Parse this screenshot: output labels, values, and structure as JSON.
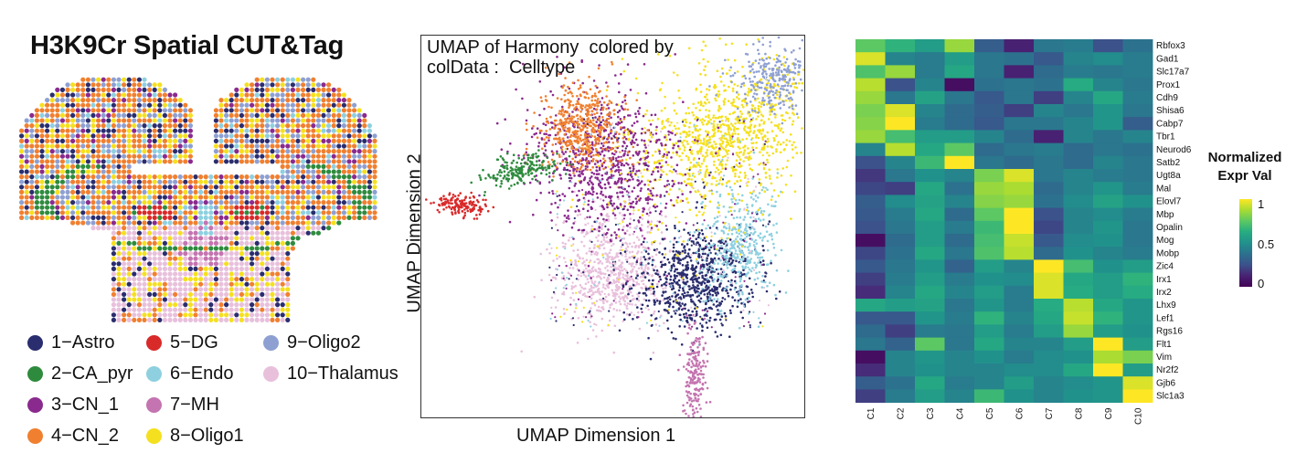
{
  "panel_a": {
    "title": "H3K9Cr Spatial CUT&Tag",
    "legend": [
      {
        "label": "1−Astro",
        "color": "#2a2d6e"
      },
      {
        "label": "2−CA_pyr",
        "color": "#2e8b3e"
      },
      {
        "label": "3−CN_1",
        "color": "#8a2a8e"
      },
      {
        "label": "4−CN_2",
        "color": "#f08030"
      },
      {
        "label": "5−DG",
        "color": "#d92a2a"
      },
      {
        "label": "6−Endo",
        "color": "#8ed0e0"
      },
      {
        "label": "7−MH",
        "color": "#c474b0"
      },
      {
        "label": "8−Oligo1",
        "color": "#f5e020"
      },
      {
        "label": "9−Oligo2",
        "color": "#8ea0d2"
      },
      {
        "label": "10−Thalamus",
        "color": "#e8c0dc"
      }
    ]
  },
  "chart_data": [
    {
      "type": "scatter",
      "title": "UMAP of Harmony  colored by\ncolData :  Celltype",
      "xlabel": "UMAP Dimension 1",
      "ylabel": "UMAP Dimension 2",
      "cluster_labels": [
        "4",
        "9",
        "8",
        "3",
        "2",
        "5",
        "6",
        "1",
        "10",
        "7"
      ],
      "grid": false
    },
    {
      "type": "heatmap",
      "columns": [
        "C1",
        "C2",
        "C3",
        "C4",
        "C5",
        "C6",
        "C7",
        "C8",
        "C9",
        "C10"
      ],
      "rows": [
        "Rbfox3",
        "Gad1",
        "Slc17a7",
        "Prox1",
        "Cdh9",
        "Shisa6",
        "Cabp7",
        "Tbr1",
        "Neurod6",
        "Satb2",
        "Ugt8a",
        "Mal",
        "Elovl7",
        "Mbp",
        "Opalin",
        "Mog",
        "Mobp",
        "Zic4",
        "Irx1",
        "Irx2",
        "Lhx9",
        "Lef1",
        "Rgs16",
        "Flt1",
        "Vim",
        "Nr2f2",
        "Gjb6",
        "Slc1a3"
      ],
      "values": [
        [
          0.75,
          0.65,
          0.55,
          0.85,
          0.3,
          0.12,
          0.4,
          0.42,
          0.25,
          0.38
        ],
        [
          0.95,
          0.45,
          0.42,
          0.55,
          0.4,
          0.38,
          0.28,
          0.45,
          0.48,
          0.42
        ],
        [
          0.72,
          0.85,
          0.42,
          0.6,
          0.4,
          0.12,
          0.35,
          0.42,
          0.4,
          0.42
        ],
        [
          0.9,
          0.25,
          0.45,
          0.05,
          0.38,
          0.4,
          0.38,
          0.62,
          0.45,
          0.4
        ],
        [
          0.85,
          0.4,
          0.58,
          0.4,
          0.28,
          0.4,
          0.2,
          0.45,
          0.6,
          0.42
        ],
        [
          0.8,
          0.95,
          0.45,
          0.35,
          0.3,
          0.2,
          0.45,
          0.4,
          0.52,
          0.4
        ],
        [
          0.82,
          1.0,
          0.42,
          0.35,
          0.28,
          0.4,
          0.4,
          0.45,
          0.52,
          0.3
        ],
        [
          0.85,
          0.7,
          0.55,
          0.55,
          0.45,
          0.35,
          0.12,
          0.45,
          0.4,
          0.45
        ],
        [
          0.45,
          0.9,
          0.6,
          0.75,
          0.35,
          0.4,
          0.42,
          0.35,
          0.4,
          0.38
        ],
        [
          0.25,
          0.45,
          0.68,
          1.0,
          0.4,
          0.35,
          0.4,
          0.35,
          0.45,
          0.4
        ],
        [
          0.18,
          0.4,
          0.5,
          0.45,
          0.8,
          0.95,
          0.4,
          0.45,
          0.42,
          0.4
        ],
        [
          0.22,
          0.2,
          0.6,
          0.38,
          0.85,
          0.88,
          0.35,
          0.45,
          0.52,
          0.42
        ],
        [
          0.3,
          0.48,
          0.58,
          0.45,
          0.82,
          0.85,
          0.38,
          0.48,
          0.58,
          0.5
        ],
        [
          0.28,
          0.42,
          0.6,
          0.35,
          0.75,
          1.0,
          0.25,
          0.45,
          0.48,
          0.42
        ],
        [
          0.25,
          0.4,
          0.55,
          0.42,
          0.68,
          1.0,
          0.22,
          0.45,
          0.52,
          0.4
        ],
        [
          0.05,
          0.35,
          0.55,
          0.35,
          0.7,
          0.92,
          0.28,
          0.48,
          0.5,
          0.4
        ],
        [
          0.22,
          0.38,
          0.6,
          0.4,
          0.72,
          0.9,
          0.35,
          0.5,
          0.45,
          0.42
        ],
        [
          0.28,
          0.4,
          0.52,
          0.32,
          0.55,
          0.45,
          1.0,
          0.7,
          0.5,
          0.55
        ],
        [
          0.2,
          0.42,
          0.55,
          0.42,
          0.5,
          0.48,
          0.95,
          0.6,
          0.55,
          0.65
        ],
        [
          0.15,
          0.45,
          0.6,
          0.45,
          0.55,
          0.42,
          0.95,
          0.62,
          0.55,
          0.62
        ],
        [
          0.6,
          0.55,
          0.58,
          0.4,
          0.52,
          0.42,
          0.62,
          0.9,
          0.6,
          0.52
        ],
        [
          0.28,
          0.28,
          0.52,
          0.42,
          0.65,
          0.45,
          0.6,
          0.92,
          0.65,
          0.52
        ],
        [
          0.35,
          0.2,
          0.42,
          0.4,
          0.55,
          0.42,
          0.55,
          0.85,
          0.55,
          0.5
        ],
        [
          0.4,
          0.32,
          0.75,
          0.4,
          0.6,
          0.45,
          0.45,
          0.55,
          1.0,
          0.55
        ],
        [
          0.05,
          0.45,
          0.52,
          0.45,
          0.5,
          0.42,
          0.48,
          0.5,
          0.88,
          0.8
        ],
        [
          0.15,
          0.45,
          0.5,
          0.45,
          0.45,
          0.48,
          0.48,
          0.6,
          1.0,
          0.55
        ],
        [
          0.3,
          0.38,
          0.6,
          0.42,
          0.45,
          0.55,
          0.45,
          0.48,
          0.52,
          0.95
        ],
        [
          0.2,
          0.42,
          0.55,
          0.45,
          0.68,
          0.5,
          0.45,
          0.5,
          0.52,
          1.0
        ]
      ],
      "colorbar_title": "Normalized\nExpr Val",
      "colorbar_ticks": [
        "1",
        "0.5",
        "0"
      ],
      "colorscale": "viridis",
      "range": [
        0,
        1
      ]
    }
  ]
}
